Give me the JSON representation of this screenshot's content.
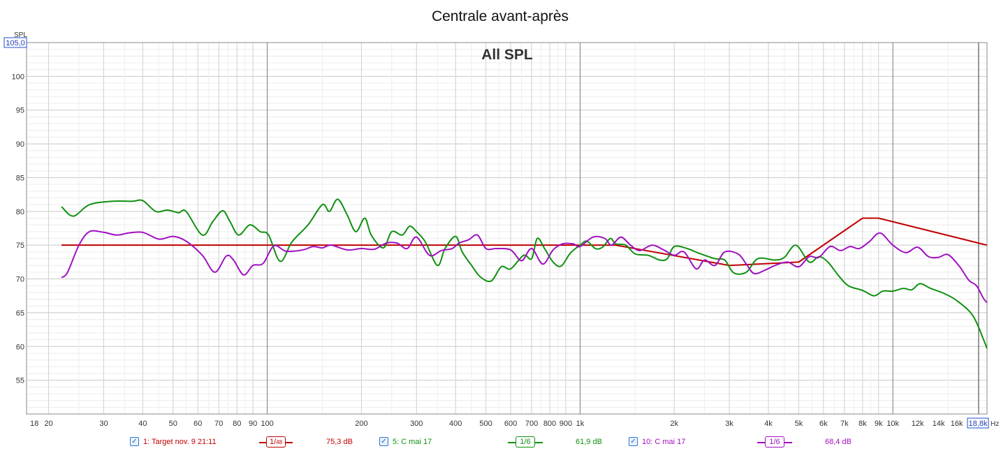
{
  "chart_data": {
    "type": "line",
    "title": "Centrale avant-après",
    "subtitle": "All SPL",
    "ylabel": "SPL",
    "xlabel": "Hz",
    "x_scale": "log",
    "xlim": [
      17,
      20000
    ],
    "ylim": [
      50,
      105
    ],
    "y_max_readout": "105,0",
    "x_max_readout": "18,8k",
    "x_ticks": [
      {
        "v": 18,
        "label": "18"
      },
      {
        "v": 20,
        "label": "20"
      },
      {
        "v": 30,
        "label": "30"
      },
      {
        "v": 40,
        "label": "40"
      },
      {
        "v": 50,
        "label": "50"
      },
      {
        "v": 60,
        "label": "60"
      },
      {
        "v": 70,
        "label": "70"
      },
      {
        "v": 80,
        "label": "80"
      },
      {
        "v": 90,
        "label": "90"
      },
      {
        "v": 100,
        "label": "100"
      },
      {
        "v": 200,
        "label": "200"
      },
      {
        "v": 300,
        "label": "300"
      },
      {
        "v": 400,
        "label": "400"
      },
      {
        "v": 500,
        "label": "500"
      },
      {
        "v": 600,
        "label": "600"
      },
      {
        "v": 700,
        "label": "700"
      },
      {
        "v": 800,
        "label": "800"
      },
      {
        "v": 900,
        "label": "900"
      },
      {
        "v": 1000,
        "label": "1k"
      },
      {
        "v": 2000,
        "label": "2k"
      },
      {
        "v": 3000,
        "label": "3k"
      },
      {
        "v": 4000,
        "label": "4k"
      },
      {
        "v": 5000,
        "label": "5k"
      },
      {
        "v": 6000,
        "label": "6k"
      },
      {
        "v": 7000,
        "label": "7k"
      },
      {
        "v": 8000,
        "label": "8k"
      },
      {
        "v": 9000,
        "label": "9k"
      },
      {
        "v": 10000,
        "label": "10k"
      },
      {
        "v": 12000,
        "label": "12k"
      },
      {
        "v": 14000,
        "label": "14k"
      },
      {
        "v": 16000,
        "label": "16k"
      }
    ],
    "y_ticks": [
      55,
      60,
      65,
      70,
      75,
      80,
      85,
      90,
      95,
      100
    ],
    "grid": true,
    "series": [
      {
        "name": "1: Target nov. 9 21:11",
        "color": "#c00000",
        "smoothing_num": "1",
        "smoothing_den": "48",
        "level": "75,3 dB",
        "points": [
          [
            22,
            75
          ],
          [
            1000,
            75
          ],
          [
            1300,
            75
          ],
          [
            3000,
            72
          ],
          [
            5000,
            72.5
          ],
          [
            8000,
            79
          ],
          [
            9000,
            79
          ],
          [
            20000,
            75
          ]
        ]
      },
      {
        "name": "5: C mai 17",
        "color": "#109010",
        "smoothing_num": "1",
        "smoothing_den": "6",
        "level": "61,9 dB",
        "points": [
          [
            22,
            80.7
          ],
          [
            24,
            79.3
          ],
          [
            27,
            81
          ],
          [
            32,
            81.5
          ],
          [
            37,
            81.5
          ],
          [
            40,
            81.6
          ],
          [
            44,
            80
          ],
          [
            48,
            80.2
          ],
          [
            52,
            79.8
          ],
          [
            55,
            80
          ],
          [
            62,
            76.5
          ],
          [
            67,
            78.5
          ],
          [
            72,
            80.1
          ],
          [
            76,
            78.5
          ],
          [
            81,
            76.5
          ],
          [
            88,
            78
          ],
          [
            95,
            77
          ],
          [
            101,
            76.5
          ],
          [
            110,
            72.6
          ],
          [
            120,
            75.5
          ],
          [
            135,
            78
          ],
          [
            150,
            81
          ],
          [
            158,
            80
          ],
          [
            168,
            81.8
          ],
          [
            180,
            79.5
          ],
          [
            192,
            77
          ],
          [
            205,
            79
          ],
          [
            215,
            76.5
          ],
          [
            235,
            74.6
          ],
          [
            250,
            77
          ],
          [
            270,
            76.5
          ],
          [
            285,
            77.8
          ],
          [
            300,
            77
          ],
          [
            320,
            75.5
          ],
          [
            350,
            72
          ],
          [
            370,
            74.5
          ],
          [
            400,
            76.3
          ],
          [
            420,
            74
          ],
          [
            450,
            72
          ],
          [
            480,
            70.3
          ],
          [
            520,
            69.7
          ],
          [
            560,
            71.8
          ],
          [
            600,
            71.5
          ],
          [
            660,
            73.5
          ],
          [
            700,
            73
          ],
          [
            730,
            76
          ],
          [
            770,
            74.5
          ],
          [
            820,
            72.5
          ],
          [
            870,
            71.9
          ],
          [
            930,
            73.8
          ],
          [
            1000,
            75
          ],
          [
            1050,
            75.6
          ],
          [
            1120,
            74.5
          ],
          [
            1180,
            74.7
          ],
          [
            1250,
            76
          ],
          [
            1300,
            75.2
          ],
          [
            1400,
            75
          ],
          [
            1500,
            73.7
          ],
          [
            1650,
            73.5
          ],
          [
            1800,
            72.8
          ],
          [
            1900,
            73
          ],
          [
            2000,
            74.8
          ],
          [
            2200,
            74.5
          ],
          [
            2400,
            73.8
          ],
          [
            2700,
            73
          ],
          [
            2900,
            72.8
          ],
          [
            3100,
            70.9
          ],
          [
            3400,
            71
          ],
          [
            3700,
            73
          ],
          [
            4200,
            72.8
          ],
          [
            4500,
            73.2
          ],
          [
            4900,
            75
          ],
          [
            5400,
            72.5
          ],
          [
            5800,
            73.3
          ],
          [
            6200,
            72.5
          ],
          [
            6700,
            70.5
          ],
          [
            7200,
            69
          ],
          [
            8000,
            68.3
          ],
          [
            8700,
            67.5
          ],
          [
            9300,
            68.2
          ],
          [
            10000,
            68.2
          ],
          [
            10800,
            68.6
          ],
          [
            11500,
            68.4
          ],
          [
            12200,
            69.3
          ],
          [
            13200,
            68.6
          ],
          [
            14500,
            67.9
          ],
          [
            16000,
            66.8
          ],
          [
            18000,
            64.6
          ],
          [
            19500,
            61
          ],
          [
            20000,
            59.7
          ]
        ]
      },
      {
        "name": "10: C mai 17",
        "color": "#a010c0",
        "smoothing_num": "1",
        "smoothing_den": "6",
        "level": "68,4 dB",
        "points": [
          [
            22,
            70.2
          ],
          [
            23,
            71
          ],
          [
            25,
            75
          ],
          [
            27,
            77
          ],
          [
            30,
            76.9
          ],
          [
            33,
            76.5
          ],
          [
            36,
            76.8
          ],
          [
            40,
            76.9
          ],
          [
            45,
            75.9
          ],
          [
            50,
            76.3
          ],
          [
            55,
            75.6
          ],
          [
            62,
            73.5
          ],
          [
            68,
            71
          ],
          [
            74,
            73.4
          ],
          [
            78,
            72.8
          ],
          [
            84,
            70.6
          ],
          [
            90,
            72
          ],
          [
            97,
            72.3
          ],
          [
            105,
            74.9
          ],
          [
            115,
            74.1
          ],
          [
            130,
            74.3
          ],
          [
            140,
            74.8
          ],
          [
            150,
            74.6
          ],
          [
            160,
            75
          ],
          [
            180,
            74.3
          ],
          [
            200,
            74.5
          ],
          [
            220,
            74.4
          ],
          [
            240,
            75.3
          ],
          [
            260,
            75.3
          ],
          [
            280,
            74.5
          ],
          [
            300,
            76.2
          ],
          [
            330,
            73.5
          ],
          [
            360,
            74.2
          ],
          [
            390,
            74.5
          ],
          [
            410,
            75.3
          ],
          [
            440,
            75.8
          ],
          [
            470,
            76.5
          ],
          [
            500,
            74.5
          ],
          [
            540,
            74.5
          ],
          [
            600,
            74.3
          ],
          [
            650,
            72.7
          ],
          [
            700,
            74.5
          ],
          [
            760,
            72.2
          ],
          [
            820,
            74.3
          ],
          [
            880,
            75.2
          ],
          [
            950,
            75.2
          ],
          [
            1000,
            74.8
          ],
          [
            1100,
            76.2
          ],
          [
            1200,
            76
          ],
          [
            1260,
            75
          ],
          [
            1350,
            76.2
          ],
          [
            1450,
            75
          ],
          [
            1550,
            74.2
          ],
          [
            1700,
            75
          ],
          [
            1850,
            74.3
          ],
          [
            2000,
            73.5
          ],
          [
            2150,
            74
          ],
          [
            2350,
            71.5
          ],
          [
            2500,
            72.8
          ],
          [
            2700,
            72
          ],
          [
            2900,
            74
          ],
          [
            3200,
            73.7
          ],
          [
            3400,
            72.2
          ],
          [
            3600,
            70.8
          ],
          [
            3900,
            71.3
          ],
          [
            4200,
            72
          ],
          [
            4600,
            72.5
          ],
          [
            5000,
            71.8
          ],
          [
            5400,
            73.3
          ],
          [
            5800,
            73.2
          ],
          [
            6300,
            74.8
          ],
          [
            6800,
            74.2
          ],
          [
            7300,
            74.8
          ],
          [
            7800,
            74.5
          ],
          [
            8400,
            75.5
          ],
          [
            9100,
            76.8
          ],
          [
            10000,
            75
          ],
          [
            11000,
            73.9
          ],
          [
            12000,
            74.7
          ],
          [
            13000,
            73.3
          ],
          [
            14000,
            73.2
          ],
          [
            15000,
            73.6
          ],
          [
            16300,
            71.9
          ],
          [
            17500,
            69.8
          ],
          [
            18500,
            69
          ],
          [
            19500,
            67.1
          ],
          [
            20000,
            66.5
          ]
        ]
      }
    ]
  }
}
